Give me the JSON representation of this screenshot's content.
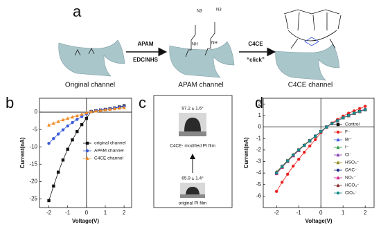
{
  "panel_labels": [
    "a",
    "b",
    "c",
    "d"
  ],
  "scheme": {
    "step1_top": "APAM",
    "step1_bottom": "EDC/NHS",
    "step2_top": "C4CE",
    "step2_bottom": "“click”",
    "channels": [
      "Original channel",
      "APAM channel",
      "C4CE channel"
    ],
    "group_labels": [
      "N3",
      "N3",
      "NH",
      "NH"
    ]
  },
  "contact_angle": {
    "top_angle": "97.2 ± 1.6°",
    "top_caption": "C4CE- modified PI film",
    "bottom_angle": "65.9 ± 1.4°",
    "bottom_caption": "original PI film"
  },
  "chart_data": [
    {
      "type": "line",
      "xlabel": "Voltage(V)",
      "ylabel": "Current(nA)",
      "legend": "lower right",
      "x": [
        -2,
        -1.75,
        -1.5,
        -1.25,
        -1,
        -0.75,
        -0.5,
        -0.25,
        0,
        0.25,
        0.5,
        0.75,
        1,
        1.25,
        1.5,
        1.75,
        2
      ],
      "xlim": [
        -2.5,
        2.4
      ],
      "xticks": [
        -2,
        -1,
        0,
        1,
        2
      ],
      "ylim": [
        -27.5,
        4
      ],
      "yticks": [
        0,
        -5,
        -10,
        -15,
        -20,
        -25
      ],
      "series": [
        {
          "name": "original channel",
          "color": "#111111",
          "marker": "square",
          "values": [
            -25.5,
            -21.3,
            -17.3,
            -13.8,
            -10.7,
            -8.0,
            -5.6,
            -3.6,
            -1.8,
            0.2,
            0.4,
            0.6,
            0.8,
            1.0,
            1.2,
            1.5,
            1.8
          ]
        },
        {
          "name": "APAM channel",
          "color": "#3a5bd9",
          "marker": "circle",
          "values": [
            -9.0,
            -7.6,
            -6.3,
            -5.1,
            -4.0,
            -3.0,
            -2.1,
            -1.3,
            -0.5,
            0.2,
            0.4,
            0.6,
            0.8,
            1.0,
            1.2,
            1.4,
            1.6
          ]
        },
        {
          "name": "C4CE channel",
          "color": "#f08a24",
          "marker": "triangle",
          "values": [
            -3.7,
            -3.2,
            -2.7,
            -2.2,
            -1.8,
            -1.4,
            -1.0,
            -0.6,
            -0.2,
            0.2,
            0.35,
            0.5,
            0.7,
            0.85,
            1.0,
            1.15,
            1.3
          ]
        }
      ]
    },
    {
      "type": "line",
      "xlabel": "Voltage(V)",
      "ylabel": "Current(nA)",
      "legend": "right",
      "x": [
        -2,
        -1.75,
        -1.5,
        -1.25,
        -1,
        -0.75,
        -0.5,
        -0.25,
        0,
        0.25,
        0.5,
        0.75,
        1,
        1.25,
        1.5,
        1.75,
        2
      ],
      "xlim": [
        -2.6,
        2.4
      ],
      "xticks": [
        -2,
        -1,
        0,
        1,
        2
      ],
      "ylim": [
        -7,
        2.5
      ],
      "yticks": [
        2,
        1,
        0,
        -1,
        -2,
        -3,
        -4,
        -5,
        -6
      ],
      "series": [
        {
          "name": "Control",
          "color": "#111111",
          "marker": "square",
          "values": [
            -4.0,
            -3.45,
            -2.95,
            -2.45,
            -2.0,
            -1.6,
            -1.2,
            -0.8,
            -0.4,
            0.0,
            0.3,
            0.55,
            0.8,
            1.0,
            1.2,
            1.35,
            1.5
          ]
        },
        {
          "name": "F⁻",
          "color": "#e8231f",
          "marker": "circle",
          "values": [
            -5.6,
            -4.8,
            -4.1,
            -3.4,
            -2.8,
            -2.2,
            -1.65,
            -1.1,
            -0.5,
            0.0,
            0.35,
            0.65,
            0.95,
            1.2,
            1.4,
            1.6,
            1.8
          ]
        },
        {
          "name": "Br⁻",
          "color": "#3a5bd9",
          "marker": "triangle",
          "values": [
            -3.9,
            -3.4,
            -2.9,
            -2.4,
            -1.95,
            -1.55,
            -1.15,
            -0.8,
            -0.4,
            0.0,
            0.3,
            0.55,
            0.8,
            1.0,
            1.2,
            1.4,
            1.55
          ]
        },
        {
          "name": "I⁻",
          "color": "#2e9e3e",
          "marker": "triangle",
          "values": [
            -3.95,
            -3.4,
            -2.9,
            -2.45,
            -2.0,
            -1.6,
            -1.2,
            -0.8,
            -0.4,
            0.0,
            0.3,
            0.55,
            0.8,
            1.0,
            1.2,
            1.35,
            1.5
          ]
        },
        {
          "name": "Cl⁻",
          "color": "#8a3fb5",
          "marker": "triangle",
          "values": [
            -4.0,
            -3.5,
            -2.95,
            -2.45,
            -2.0,
            -1.6,
            -1.2,
            -0.8,
            -0.4,
            0.0,
            0.3,
            0.55,
            0.8,
            1.0,
            1.2,
            1.35,
            1.5
          ]
        },
        {
          "name": "HSO₃⁻",
          "color": "#8f8a1a",
          "marker": "triangle",
          "values": [
            -3.9,
            -3.4,
            -2.9,
            -2.4,
            -1.95,
            -1.55,
            -1.15,
            -0.8,
            -0.4,
            0.0,
            0.3,
            0.55,
            0.8,
            1.0,
            1.2,
            1.4,
            1.5
          ]
        },
        {
          "name": "OAC⁻",
          "color": "#1f2f8a",
          "marker": "circle",
          "values": [
            -4.0,
            -3.45,
            -2.95,
            -2.45,
            -2.0,
            -1.6,
            -1.2,
            -0.8,
            -0.4,
            0.0,
            0.3,
            0.55,
            0.8,
            1.0,
            1.2,
            1.35,
            1.5
          ]
        },
        {
          "name": "NO₃⁻",
          "color": "#d1238f",
          "marker": "triangle",
          "values": [
            -4.05,
            -3.5,
            -3.0,
            -2.5,
            -2.05,
            -1.6,
            -1.2,
            -0.8,
            -0.4,
            0.0,
            0.3,
            0.55,
            0.8,
            1.0,
            1.2,
            1.35,
            1.55
          ]
        },
        {
          "name": "HCO₃⁻",
          "color": "#8a2a2a",
          "marker": "triangle",
          "values": [
            -3.95,
            -3.45,
            -2.95,
            -2.45,
            -2.0,
            -1.6,
            -1.2,
            -0.8,
            -0.4,
            0.0,
            0.3,
            0.55,
            0.8,
            1.0,
            1.2,
            1.35,
            1.5
          ]
        },
        {
          "name": "ClO₄⁻",
          "color": "#1a8a8a",
          "marker": "circle",
          "values": [
            -4.0,
            -3.45,
            -2.95,
            -2.45,
            -2.0,
            -1.6,
            -1.2,
            -0.8,
            -0.4,
            0.0,
            0.3,
            0.55,
            0.8,
            1.0,
            1.2,
            1.35,
            1.5
          ]
        }
      ]
    }
  ]
}
